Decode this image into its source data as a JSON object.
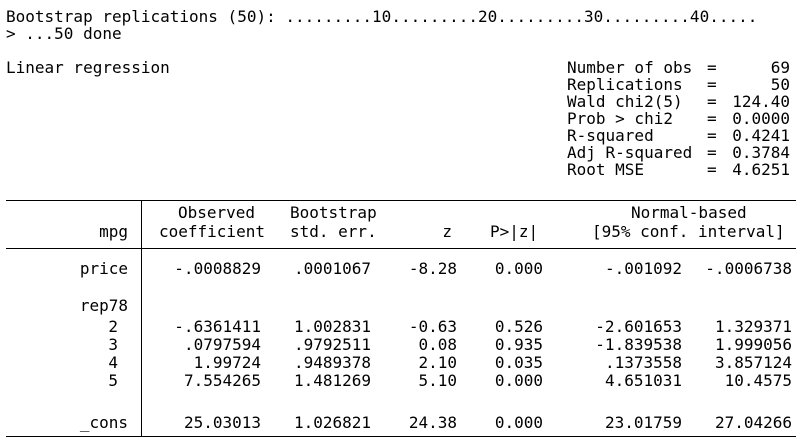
{
  "progress": {
    "line1": "Bootstrap replications (50): .........10.........20.........30.........40.....",
    "line2": "> ...50 done"
  },
  "title": "Linear regression",
  "stats": [
    {
      "label": "Number of obs",
      "eq": "=",
      "value": "69"
    },
    {
      "label": "Replications",
      "eq": "=",
      "value": "50"
    },
    {
      "label": "Wald chi2(5)",
      "eq": "=",
      "value": "124.40"
    },
    {
      "label": "Prob > chi2",
      "eq": "=",
      "value": "0.0000"
    },
    {
      "label": "R-squared",
      "eq": "=",
      "value": "0.4241"
    },
    {
      "label": "Adj R-squared",
      "eq": "=",
      "value": "0.3784"
    },
    {
      "label": "Root MSE",
      "eq": "=",
      "value": "4.6251"
    }
  ],
  "table": {
    "depvar": "mpg",
    "header": {
      "observed": "Observed",
      "coefficient": "coefficient",
      "bootstrap": "Bootstrap",
      "stderr": "std. err.",
      "z": "z",
      "p": "P>|z|",
      "normal": "Normal-based",
      "interval": "[95% conf. interval]"
    },
    "rows": [
      {
        "name": "price",
        "coef": "-.0008829",
        "se": ".0001067",
        "z": "-8.28",
        "p": "0.000",
        "lo": "-.001092",
        "hi": "-.0006738"
      },
      {
        "name": "rep78"
      },
      {
        "name": "2",
        "coef": "-.6361411",
        "se": "1.002831",
        "z": "-0.63",
        "p": "0.526",
        "lo": "-2.601653",
        "hi": "1.329371"
      },
      {
        "name": "3",
        "coef": ".0797594",
        "se": ".9792511",
        "z": "0.08",
        "p": "0.935",
        "lo": "-1.839538",
        "hi": "1.999056"
      },
      {
        "name": "4",
        "coef": "1.99724",
        "se": ".9489378",
        "z": "2.10",
        "p": "0.035",
        "lo": ".1373558",
        "hi": "3.857124"
      },
      {
        "name": "5",
        "coef": "7.554265",
        "se": "1.481269",
        "z": "5.10",
        "p": "0.000",
        "lo": "4.651031",
        "hi": "10.4575"
      },
      {
        "name": "_cons",
        "coef": "25.03013",
        "se": "1.026821",
        "z": "24.38",
        "p": "0.000",
        "lo": "23.01759",
        "hi": "27.04266"
      }
    ]
  }
}
